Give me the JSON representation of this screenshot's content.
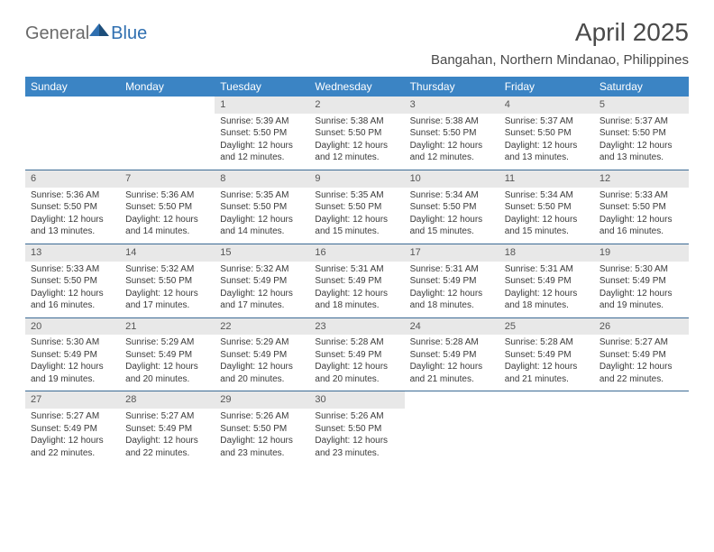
{
  "brand": {
    "general": "General",
    "blue": "Blue"
  },
  "title": "April 2025",
  "location": "Bangahan, Northern Mindanao, Philippines",
  "header_bg": "#3b84c4",
  "days_header": [
    "Sunday",
    "Monday",
    "Tuesday",
    "Wednesday",
    "Thursday",
    "Friday",
    "Saturday"
  ],
  "weeks": [
    [
      null,
      null,
      {
        "n": "1",
        "sr": "5:39 AM",
        "ss": "5:50 PM",
        "dl": "12 hours and 12 minutes."
      },
      {
        "n": "2",
        "sr": "5:38 AM",
        "ss": "5:50 PM",
        "dl": "12 hours and 12 minutes."
      },
      {
        "n": "3",
        "sr": "5:38 AM",
        "ss": "5:50 PM",
        "dl": "12 hours and 12 minutes."
      },
      {
        "n": "4",
        "sr": "5:37 AM",
        "ss": "5:50 PM",
        "dl": "12 hours and 13 minutes."
      },
      {
        "n": "5",
        "sr": "5:37 AM",
        "ss": "5:50 PM",
        "dl": "12 hours and 13 minutes."
      }
    ],
    [
      {
        "n": "6",
        "sr": "5:36 AM",
        "ss": "5:50 PM",
        "dl": "12 hours and 13 minutes."
      },
      {
        "n": "7",
        "sr": "5:36 AM",
        "ss": "5:50 PM",
        "dl": "12 hours and 14 minutes."
      },
      {
        "n": "8",
        "sr": "5:35 AM",
        "ss": "5:50 PM",
        "dl": "12 hours and 14 minutes."
      },
      {
        "n": "9",
        "sr": "5:35 AM",
        "ss": "5:50 PM",
        "dl": "12 hours and 15 minutes."
      },
      {
        "n": "10",
        "sr": "5:34 AM",
        "ss": "5:50 PM",
        "dl": "12 hours and 15 minutes."
      },
      {
        "n": "11",
        "sr": "5:34 AM",
        "ss": "5:50 PM",
        "dl": "12 hours and 15 minutes."
      },
      {
        "n": "12",
        "sr": "5:33 AM",
        "ss": "5:50 PM",
        "dl": "12 hours and 16 minutes."
      }
    ],
    [
      {
        "n": "13",
        "sr": "5:33 AM",
        "ss": "5:50 PM",
        "dl": "12 hours and 16 minutes."
      },
      {
        "n": "14",
        "sr": "5:32 AM",
        "ss": "5:50 PM",
        "dl": "12 hours and 17 minutes."
      },
      {
        "n": "15",
        "sr": "5:32 AM",
        "ss": "5:49 PM",
        "dl": "12 hours and 17 minutes."
      },
      {
        "n": "16",
        "sr": "5:31 AM",
        "ss": "5:49 PM",
        "dl": "12 hours and 18 minutes."
      },
      {
        "n": "17",
        "sr": "5:31 AM",
        "ss": "5:49 PM",
        "dl": "12 hours and 18 minutes."
      },
      {
        "n": "18",
        "sr": "5:31 AM",
        "ss": "5:49 PM",
        "dl": "12 hours and 18 minutes."
      },
      {
        "n": "19",
        "sr": "5:30 AM",
        "ss": "5:49 PM",
        "dl": "12 hours and 19 minutes."
      }
    ],
    [
      {
        "n": "20",
        "sr": "5:30 AM",
        "ss": "5:49 PM",
        "dl": "12 hours and 19 minutes."
      },
      {
        "n": "21",
        "sr": "5:29 AM",
        "ss": "5:49 PM",
        "dl": "12 hours and 20 minutes."
      },
      {
        "n": "22",
        "sr": "5:29 AM",
        "ss": "5:49 PM",
        "dl": "12 hours and 20 minutes."
      },
      {
        "n": "23",
        "sr": "5:28 AM",
        "ss": "5:49 PM",
        "dl": "12 hours and 20 minutes."
      },
      {
        "n": "24",
        "sr": "5:28 AM",
        "ss": "5:49 PM",
        "dl": "12 hours and 21 minutes."
      },
      {
        "n": "25",
        "sr": "5:28 AM",
        "ss": "5:49 PM",
        "dl": "12 hours and 21 minutes."
      },
      {
        "n": "26",
        "sr": "5:27 AM",
        "ss": "5:49 PM",
        "dl": "12 hours and 22 minutes."
      }
    ],
    [
      {
        "n": "27",
        "sr": "5:27 AM",
        "ss": "5:49 PM",
        "dl": "12 hours and 22 minutes."
      },
      {
        "n": "28",
        "sr": "5:27 AM",
        "ss": "5:49 PM",
        "dl": "12 hours and 22 minutes."
      },
      {
        "n": "29",
        "sr": "5:26 AM",
        "ss": "5:50 PM",
        "dl": "12 hours and 23 minutes."
      },
      {
        "n": "30",
        "sr": "5:26 AM",
        "ss": "5:50 PM",
        "dl": "12 hours and 23 minutes."
      },
      null,
      null,
      null
    ]
  ],
  "labels": {
    "sunrise": "Sunrise:",
    "sunset": "Sunset:",
    "daylight": "Daylight:"
  }
}
